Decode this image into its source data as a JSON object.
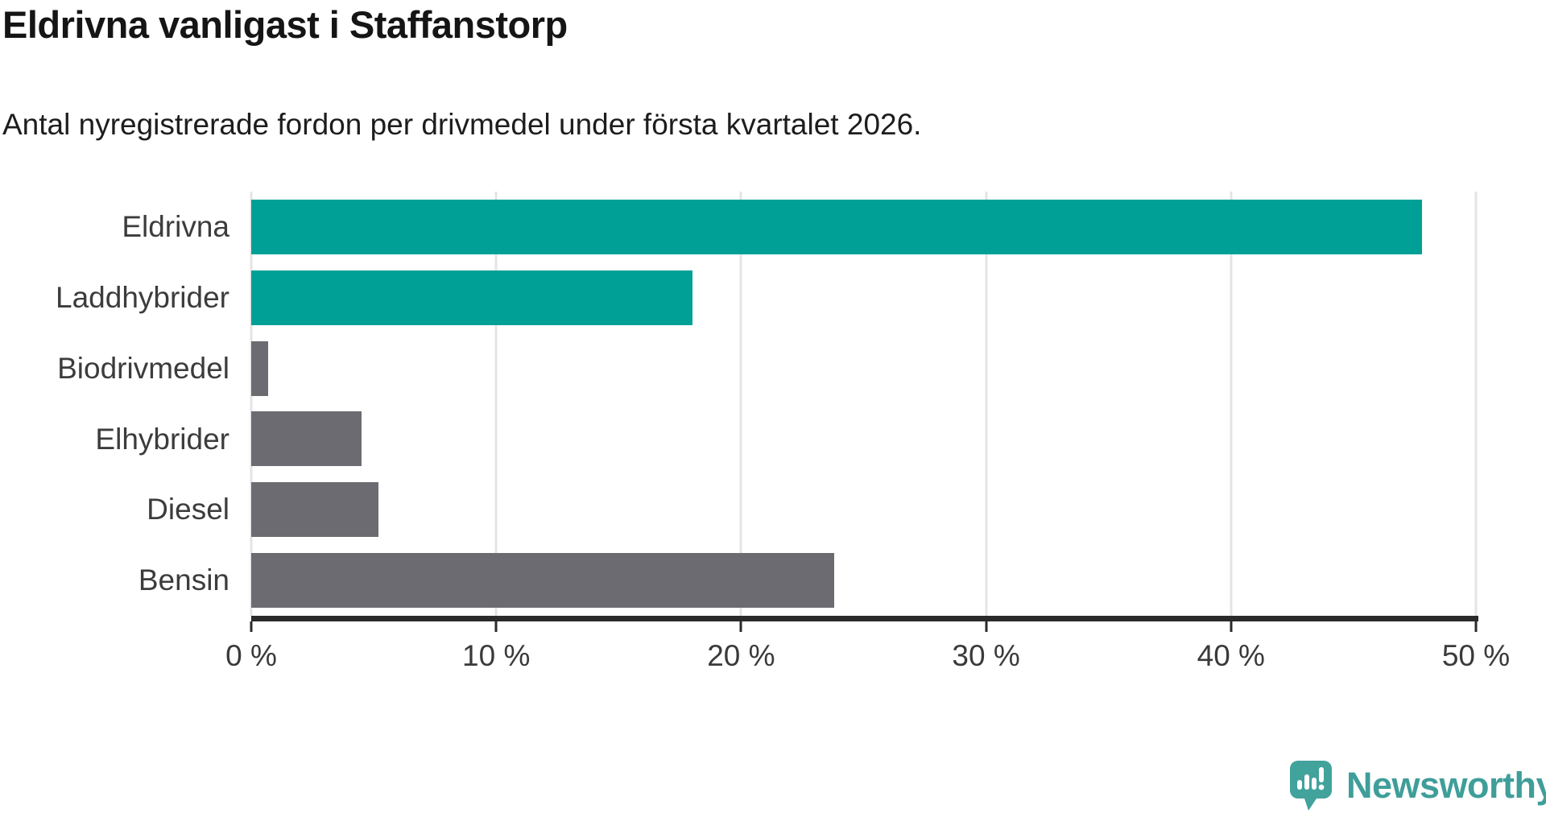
{
  "title": "Eldrivna vanligast i Staffanstorp",
  "subtitle": "Antal nyregistrerade fordon per drivmedel under första kvartalet 2026.",
  "branding": {
    "logo_text": "Newsworthy",
    "logo_icon": "bar-chart-speech-bubble-icon"
  },
  "colors": {
    "highlight": "#00a096",
    "muted": "#6b6b71",
    "gridline": "#e4e4e4",
    "axis": "#2a2a2a",
    "label_text": "#3c3c3c",
    "logo": "#3f9e99"
  },
  "chart_data": {
    "type": "bar",
    "orientation": "horizontal",
    "title": "Eldrivna vanligast i Staffanstorp",
    "subtitle": "Antal nyregistrerade fordon per drivmedel under första kvartalet 2026.",
    "categories": [
      "Eldrivna",
      "Laddhybrider",
      "Biodrivmedel",
      "Elhybrider",
      "Diesel",
      "Bensin"
    ],
    "values": [
      47.8,
      18.0,
      0.7,
      4.5,
      5.2,
      23.8
    ],
    "unit": "%",
    "xlim": [
      0,
      50
    ],
    "x_ticks": [
      "0 %",
      "10 %",
      "20 %",
      "30 %",
      "40 %",
      "50 %"
    ],
    "x_tick_values": [
      0,
      10,
      20,
      30,
      40,
      50
    ],
    "highlighted_categories": [
      "Eldrivna",
      "Laddhybrider"
    ],
    "grid": true,
    "legend": false,
    "ylabel": "",
    "xlabel": ""
  }
}
